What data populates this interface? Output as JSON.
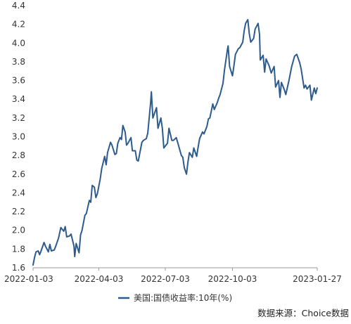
{
  "chart_data": {
    "type": "line",
    "title": "",
    "xlabel": "",
    "ylabel": "",
    "ylim": [
      1.6,
      4.4
    ],
    "y_ticks": [
      1.6,
      1.8,
      2.0,
      2.2,
      2.4,
      2.6,
      2.8,
      3.0,
      3.2,
      3.4,
      3.6,
      3.8,
      4.0,
      4.2,
      4.4
    ],
    "y_tick_labels": [
      "1.6",
      "1.8",
      "2.0",
      "2.2",
      "2.4",
      "2.6",
      "2.8",
      "3.0",
      "3.2",
      "3.4",
      "3.6",
      "3.8",
      "4.0",
      "4.2",
      "4.4"
    ],
    "x_ticks": [
      "2022-01-03",
      "2022-04-03",
      "2022-07-03",
      "2022-10-03",
      "2023-01-27"
    ],
    "x_range": [
      "2022-01-03",
      "2023-01-27"
    ],
    "grid": false,
    "legend_position": "bottom-center",
    "series": [
      {
        "name": "美国:国债收益率:10年(%)",
        "color": "#2c5b8e",
        "points": [
          [
            "2022-01-03",
            1.63
          ],
          [
            "2022-01-05",
            1.71
          ],
          [
            "2022-01-07",
            1.77
          ],
          [
            "2022-01-10",
            1.78
          ],
          [
            "2022-01-12",
            1.74
          ],
          [
            "2022-01-14",
            1.78
          ],
          [
            "2022-01-18",
            1.87
          ],
          [
            "2022-01-20",
            1.83
          ],
          [
            "2022-01-24",
            1.77
          ],
          [
            "2022-01-26",
            1.85
          ],
          [
            "2022-01-28",
            1.78
          ],
          [
            "2022-02-01",
            1.79
          ],
          [
            "2022-02-03",
            1.83
          ],
          [
            "2022-02-07",
            1.92
          ],
          [
            "2022-02-10",
            2.03
          ],
          [
            "2022-02-14",
            1.99
          ],
          [
            "2022-02-16",
            2.04
          ],
          [
            "2022-02-18",
            1.93
          ],
          [
            "2022-02-22",
            1.94
          ],
          [
            "2022-02-24",
            1.96
          ],
          [
            "2022-02-28",
            1.83
          ],
          [
            "2022-03-01",
            1.72
          ],
          [
            "2022-03-03",
            1.86
          ],
          [
            "2022-03-07",
            1.76
          ],
          [
            "2022-03-09",
            1.95
          ],
          [
            "2022-03-11",
            2.0
          ],
          [
            "2022-03-15",
            2.16
          ],
          [
            "2022-03-17",
            2.18
          ],
          [
            "2022-03-21",
            2.32
          ],
          [
            "2022-03-23",
            2.3
          ],
          [
            "2022-03-25",
            2.48
          ],
          [
            "2022-03-28",
            2.46
          ],
          [
            "2022-03-30",
            2.35
          ],
          [
            "2022-04-01",
            2.39
          ],
          [
            "2022-04-05",
            2.55
          ],
          [
            "2022-04-07",
            2.66
          ],
          [
            "2022-04-11",
            2.79
          ],
          [
            "2022-04-13",
            2.7
          ],
          [
            "2022-04-15",
            2.83
          ],
          [
            "2022-04-19",
            2.94
          ],
          [
            "2022-04-21",
            2.91
          ],
          [
            "2022-04-25",
            2.81
          ],
          [
            "2022-04-27",
            2.82
          ],
          [
            "2022-04-29",
            2.93
          ],
          [
            "2022-05-02",
            2.99
          ],
          [
            "2022-05-04",
            2.97
          ],
          [
            "2022-05-06",
            3.12
          ],
          [
            "2022-05-09",
            3.05
          ],
          [
            "2022-05-11",
            2.91
          ],
          [
            "2022-05-13",
            2.93
          ],
          [
            "2022-05-17",
            2.99
          ],
          [
            "2022-05-19",
            2.85
          ],
          [
            "2022-05-23",
            2.85
          ],
          [
            "2022-05-25",
            2.75
          ],
          [
            "2022-05-27",
            2.74
          ],
          [
            "2022-06-01",
            2.94
          ],
          [
            "2022-06-03",
            2.96
          ],
          [
            "2022-06-07",
            2.98
          ],
          [
            "2022-06-09",
            3.04
          ],
          [
            "2022-06-13",
            3.37
          ],
          [
            "2022-06-14",
            3.48
          ],
          [
            "2022-06-16",
            3.2
          ],
          [
            "2022-06-21",
            3.31
          ],
          [
            "2022-06-23",
            3.09
          ],
          [
            "2022-06-27",
            3.2
          ],
          [
            "2022-06-29",
            3.09
          ],
          [
            "2022-07-01",
            2.88
          ],
          [
            "2022-07-06",
            2.93
          ],
          [
            "2022-07-08",
            3.09
          ],
          [
            "2022-07-12",
            2.96
          ],
          [
            "2022-07-14",
            2.96
          ],
          [
            "2022-07-18",
            2.99
          ],
          [
            "2022-07-21",
            2.91
          ],
          [
            "2022-07-25",
            2.8
          ],
          [
            "2022-07-27",
            2.78
          ],
          [
            "2022-07-29",
            2.67
          ],
          [
            "2022-08-01",
            2.6
          ],
          [
            "2022-08-03",
            2.73
          ],
          [
            "2022-08-05",
            2.83
          ],
          [
            "2022-08-09",
            2.78
          ],
          [
            "2022-08-11",
            2.88
          ],
          [
            "2022-08-15",
            2.79
          ],
          [
            "2022-08-17",
            2.89
          ],
          [
            "2022-08-19",
            2.98
          ],
          [
            "2022-08-23",
            3.05
          ],
          [
            "2022-08-25",
            3.03
          ],
          [
            "2022-08-29",
            3.11
          ],
          [
            "2022-08-31",
            3.19
          ],
          [
            "2022-09-02",
            3.2
          ],
          [
            "2022-09-06",
            3.35
          ],
          [
            "2022-09-08",
            3.29
          ],
          [
            "2022-09-12",
            3.36
          ],
          [
            "2022-09-14",
            3.41
          ],
          [
            "2022-09-16",
            3.45
          ],
          [
            "2022-09-20",
            3.57
          ],
          [
            "2022-09-22",
            3.71
          ],
          [
            "2022-09-26",
            3.93
          ],
          [
            "2022-09-27",
            3.97
          ],
          [
            "2022-09-29",
            3.75
          ],
          [
            "2022-10-03",
            3.65
          ],
          [
            "2022-10-05",
            3.76
          ],
          [
            "2022-10-07",
            3.88
          ],
          [
            "2022-10-11",
            3.94
          ],
          [
            "2022-10-13",
            3.95
          ],
          [
            "2022-10-17",
            4.01
          ],
          [
            "2022-10-19",
            4.13
          ],
          [
            "2022-10-21",
            4.21
          ],
          [
            "2022-10-24",
            4.25
          ],
          [
            "2022-10-26",
            4.1
          ],
          [
            "2022-10-28",
            4.01
          ],
          [
            "2022-11-01",
            4.05
          ],
          [
            "2022-11-03",
            4.15
          ],
          [
            "2022-11-07",
            4.21
          ],
          [
            "2022-11-09",
            4.09
          ],
          [
            "2022-11-10",
            3.82
          ],
          [
            "2022-11-14",
            3.87
          ],
          [
            "2022-11-16",
            3.69
          ],
          [
            "2022-11-18",
            3.83
          ],
          [
            "2022-11-22",
            3.76
          ],
          [
            "2022-11-25",
            3.68
          ],
          [
            "2022-11-29",
            3.75
          ],
          [
            "2022-12-01",
            3.53
          ],
          [
            "2022-12-05",
            3.6
          ],
          [
            "2022-12-07",
            3.42
          ],
          [
            "2022-12-09",
            3.58
          ],
          [
            "2022-12-13",
            3.5
          ],
          [
            "2022-12-15",
            3.45
          ],
          [
            "2022-12-19",
            3.59
          ],
          [
            "2022-12-21",
            3.67
          ],
          [
            "2022-12-23",
            3.75
          ],
          [
            "2022-12-27",
            3.86
          ],
          [
            "2022-12-30",
            3.88
          ],
          [
            "2023-01-03",
            3.79
          ],
          [
            "2023-01-05",
            3.72
          ],
          [
            "2023-01-09",
            3.52
          ],
          [
            "2023-01-11",
            3.55
          ],
          [
            "2023-01-13",
            3.51
          ],
          [
            "2023-01-17",
            3.55
          ],
          [
            "2023-01-19",
            3.39
          ],
          [
            "2023-01-23",
            3.52
          ],
          [
            "2023-01-25",
            3.46
          ],
          [
            "2023-01-27",
            3.52
          ]
        ]
      }
    ],
    "source": "数据来源：Choice数据"
  }
}
